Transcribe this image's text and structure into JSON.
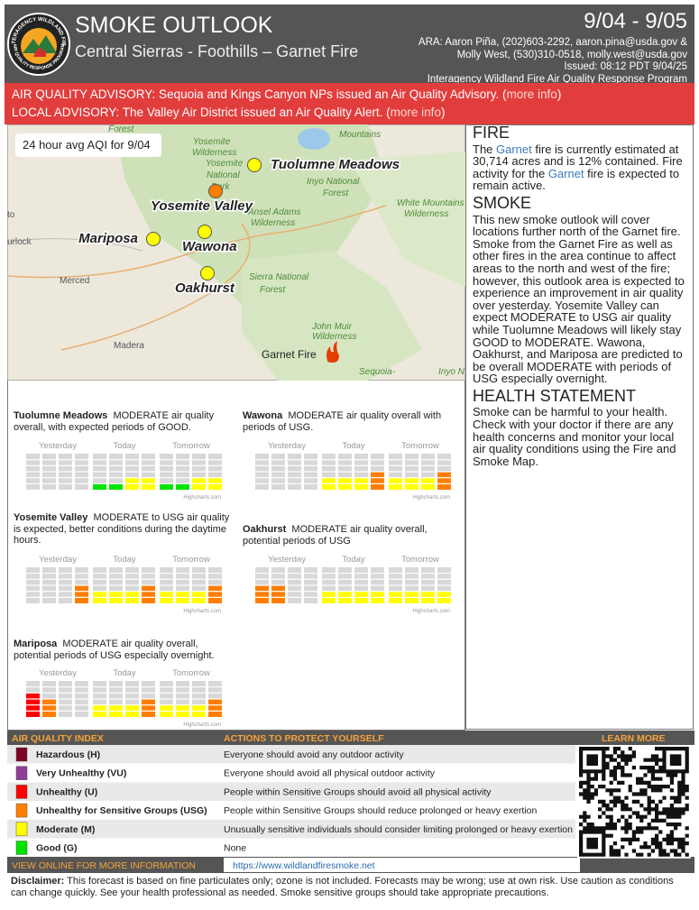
{
  "header": {
    "title": "SMOKE OUTLOOK",
    "subtitle": "Central Sierras - Foothills – Garnet Fire",
    "dates": "9/04 - 9/05",
    "contact_lines": [
      "ARA: Aaron Piña, (202)603-2292, aaron.pina@usda.gov &",
      "Molly West, (530)310-0518, molly.west@usda.gov",
      "Issued: 08:12 PDT 9/04/25",
      "Interagency Wildland Fire Air Quality Response Program"
    ],
    "logo_top": "INTERAGENCY WILDLAND FIRE",
    "logo_bottom": "AIR QUALITY RESPONSE PROGRAM"
  },
  "advisories": [
    {
      "text": "AIR QUALITY ADVISORY: Sequoia and Kings Canyon NPs issued an Air Quality Advisory. (",
      "link": "more info",
      "close": ")"
    },
    {
      "text": "LOCAL ADVISORY: The Valley Air District issued an Air Quality Alert. (",
      "link": "more info",
      "close": ")"
    }
  ],
  "map": {
    "caption": "24 hour avg AQI for 9/04",
    "locations": [
      {
        "name": "Tuolumne Meadows",
        "level": 2
      },
      {
        "name": "Yosemite Valley",
        "level": 3
      },
      {
        "name": "Mariposa",
        "level": 2
      },
      {
        "name": "Wawona",
        "level": 2
      },
      {
        "name": "Oakhurst",
        "level": 2
      }
    ],
    "fire_label": "Garnet Fire",
    "base_labels": [
      "Forest",
      "Yosemite",
      "Wilderness",
      "Yosemite",
      "National",
      "Park",
      "Mountains",
      "Inyo National",
      "Forest",
      "Ansel Adams",
      "Wilderness",
      "White Mountains",
      "Wilderness",
      "Sierra National",
      "Forest",
      "John Muir",
      "Wilderness",
      "Sequoia-",
      "Inyo N",
      "urlock",
      "to",
      "Merced",
      "Madera"
    ]
  },
  "sites": {
    "period_labels": [
      "Yesterday",
      "Today",
      "Tomorrow"
    ],
    "credit": "Highcharts.com",
    "ylim": [
      0,
      6
    ],
    "list": [
      {
        "name": "Tuolumne Meadows",
        "description": "MODERATE air quality overall, with expected periods of GOOD.",
        "levels": [
          null,
          null,
          null,
          null,
          1,
          1,
          2,
          2,
          1,
          1,
          2,
          2
        ]
      },
      {
        "name": "Wawona",
        "description": "MODERATE air quality overall with periods of USG.",
        "levels": [
          null,
          null,
          null,
          null,
          2,
          2,
          2,
          3,
          2,
          2,
          2,
          3
        ]
      },
      {
        "name": "Yosemite Valley",
        "description": "MODERATE to USG air quality is expected, better conditions during the daytime hours.",
        "levels": [
          null,
          null,
          null,
          3,
          2,
          2,
          2,
          3,
          2,
          2,
          2,
          3
        ]
      },
      {
        "name": "Oakhurst",
        "description": "MODERATE air quality overall, potential periods of USG",
        "levels": [
          3,
          3,
          null,
          null,
          2,
          2,
          2,
          2,
          2,
          2,
          2,
          2
        ]
      },
      {
        "name": "Mariposa",
        "description": "MODERATE air quality overall, potential periods of USG especially overnight.",
        "levels": [
          4,
          3,
          null,
          null,
          2,
          2,
          2,
          3,
          2,
          2,
          2,
          3
        ]
      }
    ]
  },
  "sidebar": {
    "fire_heading": "FIRE",
    "fire_text": [
      "The ",
      "Garnet",
      " fire is currently estimated at 30,714 acres and is 12% contained. Fire activity for the ",
      "Garnet",
      " fire is expected to remain active."
    ],
    "smoke_heading": "SMOKE",
    "smoke_text": "This new smoke outlook will cover locations further north of the Garnet fire. Smoke from the Garnet Fire as well as other fires in the area continue to affect areas to the north and west of the fire; however, this outlook area is expected to experience an improvement in air quality over yesterday. Yosemite Valley can expect MODERATE to USG air quality while Tuolumne Meadows will likely stay GOOD to MODERATE. Wawona, Oakhurst, and Mariposa are predicted to be overall MODERATE with periods of USG especially overnight.",
    "health_heading": "HEALTH STATEMENT",
    "health_text": "Smoke can be harmful to your health. Check with your doctor if there are any health concerns and monitor your local air quality conditions using the Fire and Smoke Map."
  },
  "aqi_table": {
    "headers": [
      "AIR QUALITY INDEX",
      "ACTIONS TO PROTECT YOURSELF",
      "LEARN MORE"
    ],
    "rows": [
      {
        "name": "Hazardous (H)",
        "color": "#7e0023",
        "action": "Everyone should avoid any outdoor activity"
      },
      {
        "name": "Very Unhealthy (VU)",
        "color": "#8f3f97",
        "action": "Everyone should avoid all physical outdoor activity"
      },
      {
        "name": "Unhealthy (U)",
        "color": "#ff0000",
        "action": "People within Sensitive Groups should avoid all physical activity"
      },
      {
        "name": "Unhealthy for Sensitive Groups (USG)",
        "color": "#ff7e00",
        "action": "People within Sensitive Groups should reduce prolonged or heavy exertion"
      },
      {
        "name": "Moderate (M)",
        "color": "#ffff00",
        "action": "Unusually sensitive individuals should consider limiting prolonged or heavy exertion"
      },
      {
        "name": "Good (G)",
        "color": "#00e400",
        "action": "None"
      }
    ],
    "footer_label": "VIEW ONLINE FOR MORE INFORMATION",
    "url": "https://www.wildlandfiresmoke.net"
  },
  "disclaimer": {
    "label": "Disclaimer:",
    "text": " This forecast is based on fine particulates only; ozone is not included. Forecasts may be wrong; use at own risk. Use caution as conditions can change quickly. See your health professional as needed. Smoke sensitive groups should take appropriate precautions."
  }
}
